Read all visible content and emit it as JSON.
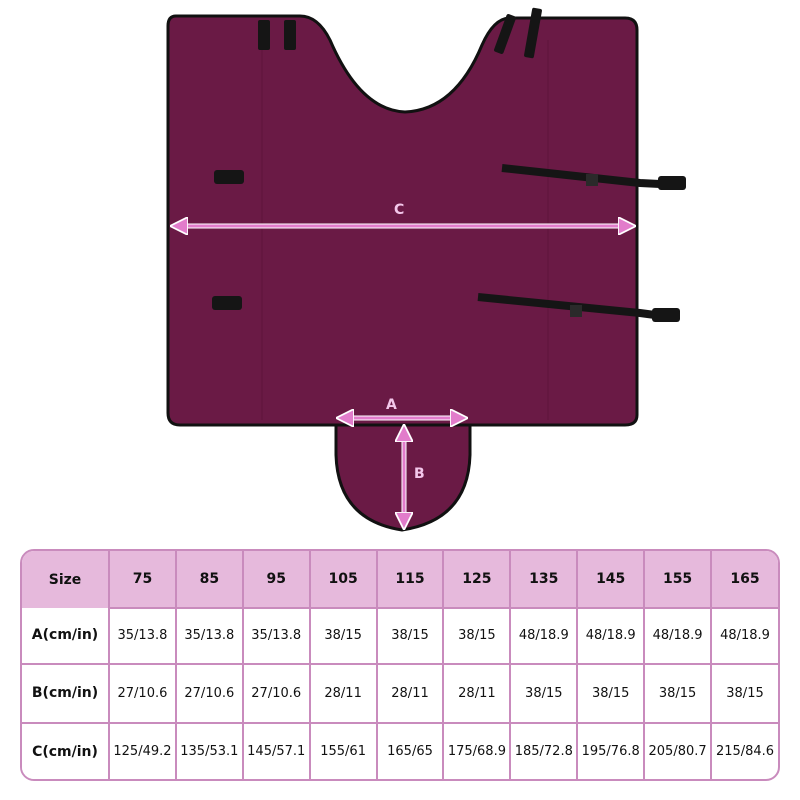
{
  "product": {
    "fabric_color": "#6a1a45",
    "arrow_color": "#e27ccb",
    "labels": {
      "a": "A",
      "b": "B",
      "c": "C"
    }
  },
  "size_chart": {
    "header_color": "#e6b9dc",
    "border_color": "#c98bbd",
    "corner_label": "Size",
    "sizes": [
      "75",
      "85",
      "95",
      "105",
      "115",
      "125",
      "135",
      "145",
      "155",
      "165"
    ],
    "rows": [
      {
        "label": "A(cm/in)",
        "values": [
          "35/13.8",
          "35/13.8",
          "35/13.8",
          "38/15",
          "38/15",
          "38/15",
          "48/18.9",
          "48/18.9",
          "48/18.9",
          "48/18.9"
        ]
      },
      {
        "label": "B(cm/in)",
        "values": [
          "27/10.6",
          "27/10.6",
          "27/10.6",
          "28/11",
          "28/11",
          "28/11",
          "38/15",
          "38/15",
          "38/15",
          "38/15"
        ]
      },
      {
        "label": "C(cm/in)",
        "values": [
          "125/49.2",
          "135/53.1",
          "145/57.1",
          "155/61",
          "165/65",
          "175/68.9",
          "185/72.8",
          "195/76.8",
          "205/80.7",
          "215/84.6"
        ]
      }
    ]
  }
}
